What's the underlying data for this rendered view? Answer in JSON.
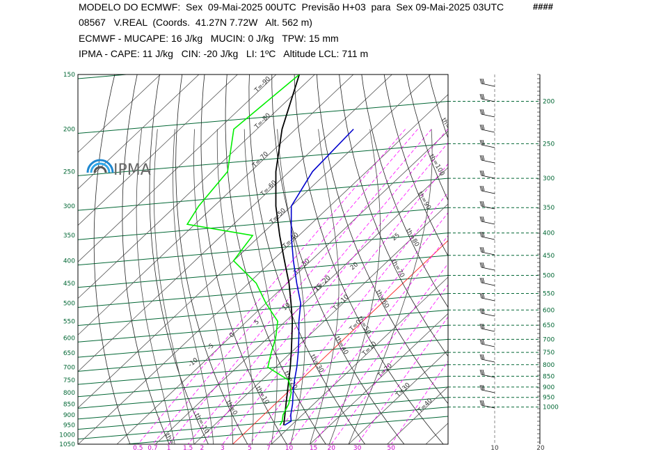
{
  "header": {
    "line1": "MODELO DO ECMWF:  Sex  09-Mai-2025 00UTC  Previsão H+03  para  Sex 09-Mai-2025 03UTC",
    "marks": "####",
    "line2": "08567   V.REAL  (Coords.  41.27N 7.72W   Alt. 562 m)",
    "line3": "ECMWF - MUCAPE: 16 J/kg   MUCIN: 0 J/kg   TPW: 15 mm",
    "line4": "IPMA - CAPE: 11 J/kg   CIN: -20 J/kg   LI: 1ºC   Altitude LCL: 711 m"
  },
  "logo": {
    "text": "IPMA"
  },
  "colors": {
    "temperature": "#0000cc",
    "dewpoint": "#00ee00",
    "parcel": "#000000",
    "isobar": "#006633",
    "isotherm": "#555555",
    "mixing_ratio": "#ff00ff",
    "dry_adiabat": "#222222",
    "freezing": "#ff3333",
    "axis_text_pressure": "#006633",
    "axis_text_mixing": "#cc00cc"
  },
  "chart_data": {
    "type": "line",
    "chart_kind": "skew-T log-P diagram",
    "pressure_levels_left": [
      "150",
      "200",
      "250",
      "300",
      "350",
      "400",
      "450",
      "500",
      "550",
      "600",
      "650",
      "700",
      "750",
      "800",
      "850",
      "900",
      "950",
      "1000",
      "1050"
    ],
    "pressure_levels_right": [
      "200",
      "250",
      "300",
      "350",
      "400",
      "450",
      "500",
      "550",
      "600",
      "650",
      "700",
      "750",
      "800",
      "850",
      "900",
      "950",
      "1000"
    ],
    "pressure_range": [
      150,
      1050
    ],
    "mixing_ratio_ticks": [
      "0.5",
      "0.7",
      "1",
      "1.5",
      "2",
      "3",
      "5",
      "7",
      "10",
      "15",
      "20",
      "30",
      "50"
    ],
    "wind_axis_ticks": [
      "10",
      "20"
    ],
    "isotherm_labels": [
      "T=-90",
      "T=-80",
      "T=-70",
      "T=-60",
      "T=-50",
      "T=-40",
      "T=-30",
      "T=-20",
      "T=-10",
      "T=0",
      "T=10",
      "T=20",
      "T=30",
      "T=40"
    ],
    "dry_adiabat_labels": [
      "th=-20",
      "th=-10",
      "th=0",
      "th=10",
      "th=20",
      "th=30",
      "th=40",
      "th=50",
      "th=60",
      "th=70",
      "th=80",
      "th=90",
      "th=100",
      "th=110"
    ],
    "moist_adiabat_labels": [
      "-10",
      "-5",
      "0",
      "5",
      "10",
      "15",
      "20",
      "25"
    ],
    "temperature_profile": {
      "pressure": [
        950,
        930,
        900,
        850,
        800,
        750,
        700,
        650,
        600,
        550,
        500,
        450,
        400,
        350,
        300,
        250,
        200
      ],
      "temperature": [
        8.2,
        8.8,
        7.0,
        4.5,
        1.5,
        -1.5,
        -4.5,
        -8.0,
        -12.0,
        -16.5,
        -21.0,
        -27.5,
        -34.5,
        -42.0,
        -50.0,
        -54.0,
        -55.0
      ]
    },
    "dewpoint_profile": {
      "pressure": [
        950,
        930,
        900,
        850,
        800,
        750,
        700,
        650,
        600,
        550,
        500,
        450,
        400,
        350,
        330,
        300,
        250,
        200,
        150
      ],
      "dewpoint": [
        7.0,
        6.5,
        5.0,
        3.5,
        1.0,
        -3.0,
        -12.0,
        -15.0,
        -18.0,
        -22.0,
        -30.0,
        -38.0,
        -50.0,
        -52.0,
        -72.0,
        -74.0,
        -76.0,
        -86.0,
        -84.0
      ]
    },
    "parcel_profile": {
      "pressure": [
        950,
        900,
        850,
        800,
        750,
        700,
        650,
        600,
        550,
        500,
        450,
        400,
        350,
        300,
        250,
        200,
        150
      ],
      "temperature": [
        8.0,
        5.5,
        2.8,
        0.0,
        -3.0,
        -6.2,
        -9.8,
        -13.8,
        -18.2,
        -23.5,
        -29.5,
        -36.8,
        -45.0,
        -54.0,
        -63.5,
        -73.5,
        -84.0
      ]
    }
  }
}
